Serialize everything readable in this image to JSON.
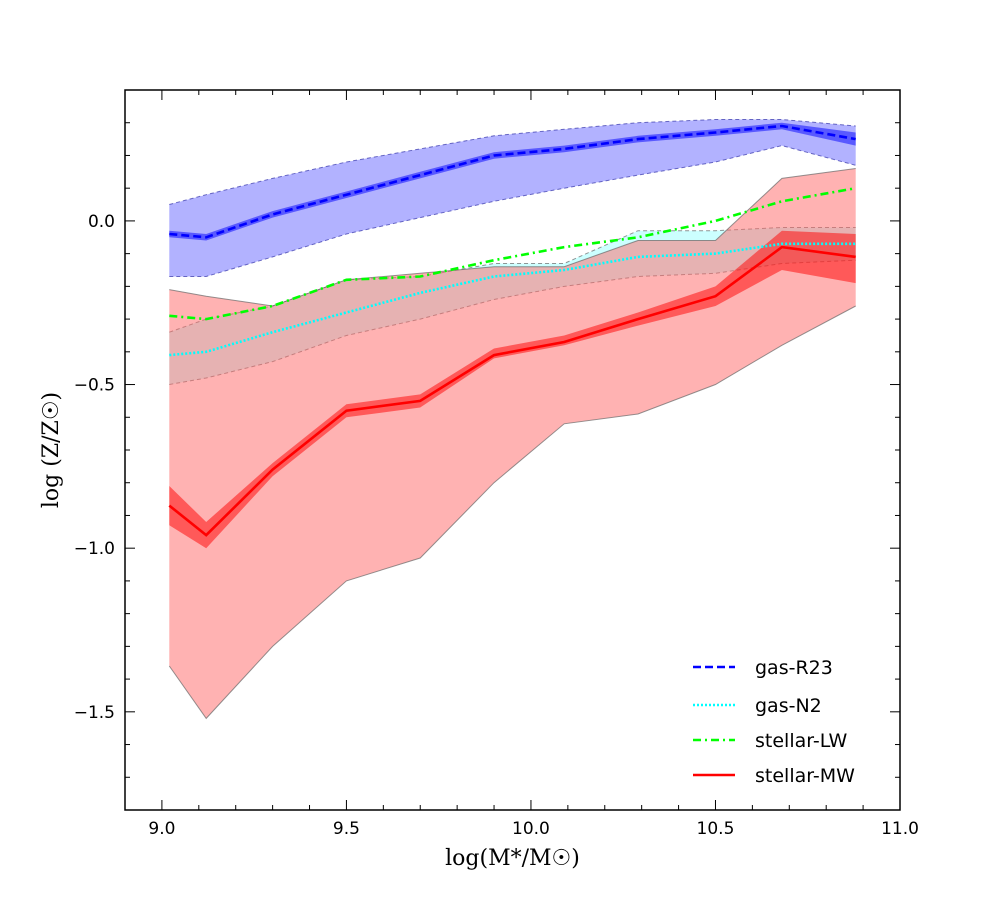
{
  "chart_data": {
    "type": "line",
    "xlabel": "log(M*/M☉)",
    "ylabel": "log (Z/Z☉)",
    "xlim": [
      8.9,
      11.0
    ],
    "ylim": [
      -1.8,
      0.4
    ],
    "xticks": [
      9.0,
      9.5,
      10.0,
      10.5,
      11.0
    ],
    "xtick_labels": [
      "9.0",
      "9.5",
      "10.0",
      "10.5",
      "11.0"
    ],
    "yticks": [
      0.0,
      -0.5,
      -1.0,
      -1.5
    ],
    "ytick_labels": [
      "0.0",
      "−0.5",
      "−1.0",
      "−1.5"
    ],
    "x": [
      9.02,
      9.12,
      9.3,
      9.5,
      9.7,
      9.9,
      10.09,
      10.29,
      10.5,
      10.68,
      10.88
    ],
    "series": [
      {
        "name": "gas-R23",
        "color": "#0000ff",
        "style": "dashed",
        "values": [
          -0.04,
          -0.05,
          0.02,
          0.08,
          0.14,
          0.2,
          0.22,
          0.25,
          0.27,
          0.29,
          0.25
        ],
        "inner_lower": [
          -0.05,
          -0.06,
          0.01,
          0.07,
          0.13,
          0.19,
          0.21,
          0.24,
          0.26,
          0.28,
          0.23
        ],
        "inner_upper": [
          -0.03,
          -0.04,
          0.03,
          0.09,
          0.15,
          0.21,
          0.23,
          0.26,
          0.28,
          0.3,
          0.27
        ],
        "band_lower": [
          -0.17,
          -0.17,
          -0.11,
          -0.04,
          0.01,
          0.06,
          0.1,
          0.14,
          0.18,
          0.23,
          0.17
        ],
        "band_upper": [
          0.05,
          0.08,
          0.13,
          0.18,
          0.22,
          0.26,
          0.28,
          0.3,
          0.31,
          0.31,
          0.29
        ],
        "band_color": "#6666ff"
      },
      {
        "name": "gas-N2",
        "color": "#00ffff",
        "style": "dotted",
        "values": [
          -0.41,
          -0.4,
          -0.34,
          -0.28,
          -0.22,
          -0.17,
          -0.15,
          -0.11,
          -0.1,
          -0.07,
          -0.07
        ],
        "band_lower": [
          -0.5,
          -0.48,
          -0.43,
          -0.35,
          -0.3,
          -0.24,
          -0.2,
          -0.17,
          -0.16,
          -0.13,
          -0.12
        ],
        "band_upper": [
          -0.34,
          -0.3,
          -0.26,
          -0.18,
          -0.17,
          -0.13,
          -0.13,
          -0.03,
          -0.03,
          -0.02,
          -0.02
        ],
        "band_color": "#99ffff"
      },
      {
        "name": "stellar-LW",
        "color": "#00ff00",
        "style": "dashdot",
        "values": [
          -0.29,
          -0.3,
          -0.26,
          -0.18,
          -0.17,
          -0.12,
          -0.08,
          -0.05,
          0.0,
          0.06,
          0.1
        ]
      },
      {
        "name": "stellar-MW",
        "color": "#ff0000",
        "style": "solid",
        "values": [
          -0.87,
          -0.96,
          -0.76,
          -0.58,
          -0.55,
          -0.41,
          -0.37,
          -0.3,
          -0.23,
          -0.08,
          -0.11
        ],
        "inner_lower": [
          -0.93,
          -1.0,
          -0.78,
          -0.6,
          -0.57,
          -0.42,
          -0.38,
          -0.32,
          -0.26,
          -0.15,
          -0.19
        ],
        "inner_upper": [
          -0.81,
          -0.92,
          -0.74,
          -0.56,
          -0.53,
          -0.39,
          -0.35,
          -0.28,
          -0.2,
          -0.03,
          -0.04
        ],
        "band_lower": [
          -1.36,
          -1.52,
          -1.3,
          -1.1,
          -1.03,
          -0.8,
          -0.62,
          -0.59,
          -0.5,
          -0.38,
          -0.26
        ],
        "band_upper": [
          -0.21,
          -0.23,
          -0.26,
          -0.18,
          -0.16,
          -0.14,
          -0.14,
          -0.06,
          -0.06,
          0.13,
          0.16
        ],
        "band_color": "#ff6666"
      }
    ],
    "legend": {
      "position": "lower-right",
      "entries": [
        "gas-R23",
        "gas-N2",
        "stellar-LW",
        "stellar-MW"
      ]
    }
  }
}
